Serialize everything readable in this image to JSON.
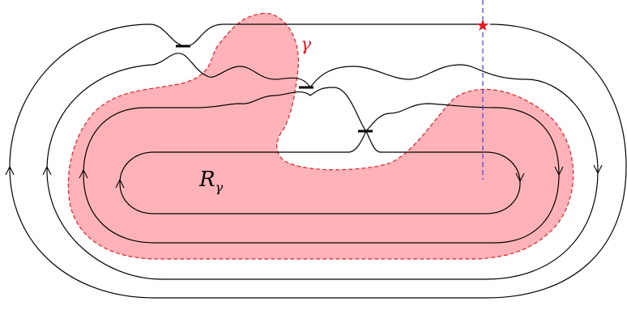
{
  "diagram": {
    "labels": {
      "gamma": "γ",
      "region_main": "R",
      "region_sub": "γ"
    },
    "star_glyph": "★",
    "colors": {
      "region_fill": "#ffb3b8",
      "region_stroke": "#e0202a",
      "cut_line": "#3b3bd9",
      "star": "#e21b22",
      "strands": "#000000"
    }
  }
}
